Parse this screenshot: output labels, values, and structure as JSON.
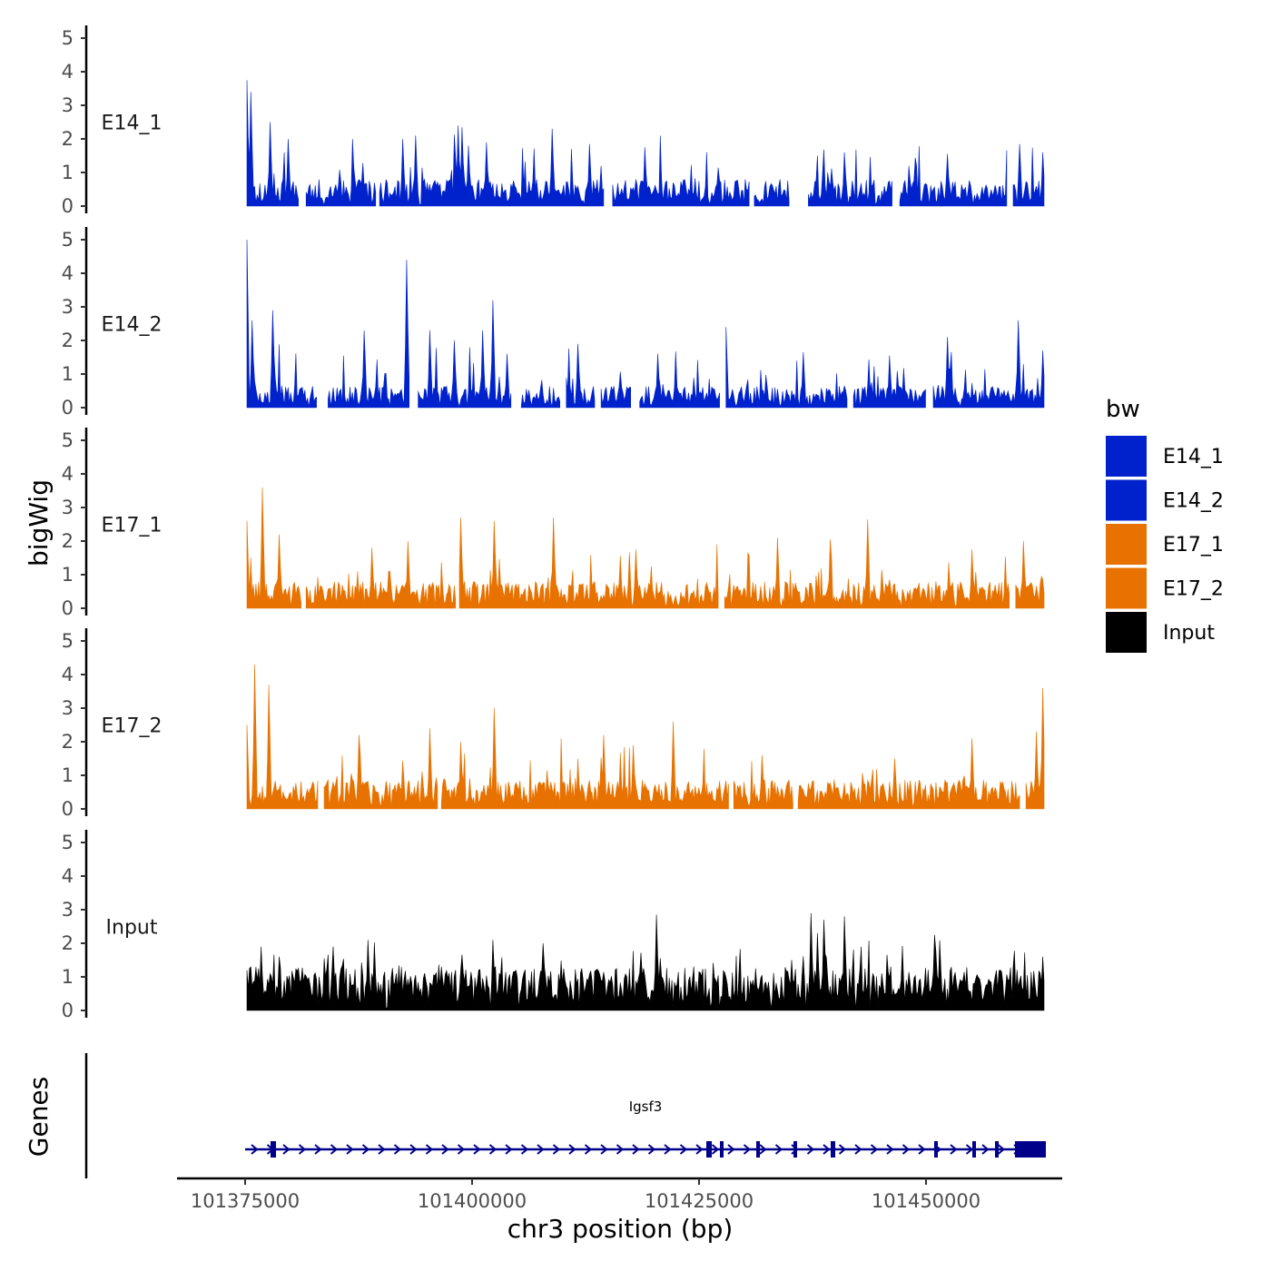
{
  "chart_data": {
    "type": "area",
    "chromosome": "chr3",
    "xlabel": "chr3 position (bp)",
    "ylabel": "bigWig",
    "genes_axis_label": "Genes",
    "xlim": [
      101367500,
      101465000
    ],
    "data_range": [
      101375200,
      101463000
    ],
    "x_ticks": [
      101375000,
      101400000,
      101425000,
      101450000
    ],
    "x_tick_labels": [
      "101375000",
      "101400000",
      "101425000",
      "101450000"
    ],
    "ylim": [
      0,
      5.4
    ],
    "y_ticks": [
      0,
      1,
      2,
      3,
      4,
      5
    ],
    "y_tick_labels": [
      "0",
      "1",
      "2",
      "3",
      "4",
      "5"
    ],
    "legend": {
      "title": "bw",
      "entries": [
        {
          "label": "E14_1",
          "color": "#0022cc"
        },
        {
          "label": "E14_2",
          "color": "#0022cc"
        },
        {
          "label": "E17_1",
          "color": "#e87200"
        },
        {
          "label": "E17_2",
          "color": "#e87200"
        },
        {
          "label": "Input",
          "color": "#000000"
        }
      ]
    },
    "series": [
      {
        "name": "E14_1",
        "color": "#0022cc",
        "seed": 11,
        "base": 0.55,
        "peak_prob": 0.09,
        "peak_scale": 1.4,
        "gaps": [
          [
            101381000,
            101381600
          ],
          [
            101389400,
            101389800
          ],
          [
            101414600,
            101415400
          ],
          [
            101430600,
            101431000
          ],
          [
            101435000,
            101437000
          ],
          [
            101446300,
            101447100
          ],
          [
            101459000,
            101459500
          ]
        ],
        "peaks": [
          [
            101375200,
            3.75
          ],
          [
            101375600,
            3.4
          ],
          [
            101377700,
            2.5
          ],
          [
            101379700,
            2.0
          ],
          [
            101392300,
            2.0
          ],
          [
            101393800,
            2.1
          ],
          [
            101398400,
            2.4
          ],
          [
            101398900,
            2.35
          ],
          [
            101399600,
            1.8
          ],
          [
            101401600,
            1.9
          ],
          [
            101408800,
            2.3
          ],
          [
            101413000,
            1.85
          ],
          [
            101419000,
            1.75
          ],
          [
            101441000,
            1.6
          ],
          [
            101452400,
            1.55
          ],
          [
            101460300,
            1.85
          ],
          [
            101462900,
            1.6
          ]
        ]
      },
      {
        "name": "E14_2",
        "color": "#0022cc",
        "seed": 23,
        "base": 0.45,
        "peak_prob": 0.09,
        "peak_scale": 1.3,
        "gaps": [
          [
            101383000,
            101384100
          ],
          [
            101393200,
            101394000
          ],
          [
            101404400,
            101405400
          ],
          [
            101409700,
            101410300
          ],
          [
            101413500,
            101414200
          ],
          [
            101417500,
            101418400
          ],
          [
            101427300,
            101427900
          ],
          [
            101441400,
            101442000
          ],
          [
            101450000,
            101450700
          ]
        ],
        "peaks": [
          [
            101375200,
            5.0
          ],
          [
            101375700,
            2.6
          ],
          [
            101378000,
            2.9
          ],
          [
            101388100,
            2.3
          ],
          [
            101392800,
            4.4
          ],
          [
            101393200,
            2.2
          ],
          [
            101395400,
            2.3
          ],
          [
            101398000,
            2.0
          ],
          [
            101401200,
            2.3
          ],
          [
            101402300,
            3.2
          ],
          [
            101403900,
            1.6
          ],
          [
            101411600,
            1.9
          ],
          [
            101420500,
            1.6
          ],
          [
            101428000,
            2.4
          ],
          [
            101436500,
            1.65
          ],
          [
            101446000,
            1.55
          ],
          [
            101452400,
            2.1
          ],
          [
            101460200,
            2.6
          ],
          [
            101462900,
            1.7
          ]
        ]
      },
      {
        "name": "E17_1",
        "color": "#e87200",
        "seed": 37,
        "base": 0.55,
        "peak_prob": 0.08,
        "peak_scale": 1.3,
        "gaps": [
          [
            101381200,
            101381700
          ],
          [
            101398200,
            101398600
          ],
          [
            101427200,
            101427700
          ],
          [
            101459300,
            101459800
          ]
        ],
        "peaks": [
          [
            101375200,
            2.6
          ],
          [
            101376900,
            3.6
          ],
          [
            101378700,
            2.2
          ],
          [
            101388900,
            1.8
          ],
          [
            101393000,
            2.0
          ],
          [
            101398800,
            2.7
          ],
          [
            101402400,
            2.6
          ],
          [
            101408900,
            2.7
          ],
          [
            101418000,
            1.75
          ],
          [
            101433700,
            2.1
          ],
          [
            101439400,
            2.05
          ],
          [
            101443500,
            2.65
          ],
          [
            101455000,
            1.75
          ],
          [
            101460800,
            2.0
          ],
          [
            101462900,
            0.85
          ]
        ]
      },
      {
        "name": "E17_2",
        "color": "#e87200",
        "seed": 53,
        "base": 0.6,
        "peak_prob": 0.08,
        "peak_scale": 1.3,
        "gaps": [
          [
            101383100,
            101383700
          ],
          [
            101396200,
            101396600
          ],
          [
            101428300,
            101428700
          ],
          [
            101435400,
            101435800
          ],
          [
            101460400,
            101461000
          ]
        ],
        "peaks": [
          [
            101375200,
            2.5
          ],
          [
            101376000,
            4.3
          ],
          [
            101377600,
            3.7
          ],
          [
            101387600,
            2.2
          ],
          [
            101395300,
            2.4
          ],
          [
            101398800,
            2.0
          ],
          [
            101402400,
            3.0
          ],
          [
            101414500,
            2.2
          ],
          [
            101417700,
            1.9
          ],
          [
            101422100,
            2.6
          ],
          [
            101432000,
            1.6
          ],
          [
            101455000,
            2.1
          ],
          [
            101462100,
            2.3
          ],
          [
            101462900,
            3.6
          ]
        ]
      },
      {
        "name": "Input",
        "color": "#000000",
        "seed": 71,
        "base": 0.9,
        "peak_prob": 0.08,
        "peak_scale": 1.0,
        "gaps": [],
        "peaks": [
          [
            101375200,
            1.2
          ],
          [
            101376800,
            1.9
          ],
          [
            101378800,
            1.6
          ],
          [
            101388500,
            2.1
          ],
          [
            101402300,
            2.1
          ],
          [
            101407800,
            2.0
          ],
          [
            101420300,
            2.85
          ],
          [
            101438000,
            2.3
          ],
          [
            101437300,
            2.9
          ],
          [
            101438700,
            2.7
          ],
          [
            101441000,
            2.8
          ],
          [
            101451000,
            2.25
          ],
          [
            101462800,
            1.6
          ]
        ]
      }
    ],
    "gene": {
      "name": "Igsf3",
      "strand": "+",
      "color": "#00008b",
      "start": 101375000,
      "end": 101463200,
      "exons": [
        [
          101377800,
          101378400
        ],
        [
          101425800,
          101426400
        ],
        [
          101427300,
          101427700
        ],
        [
          101431300,
          101431600
        ],
        [
          101435400,
          101435700
        ],
        [
          101439500,
          101440000
        ],
        [
          101450900,
          101451200
        ],
        [
          101455100,
          101455400
        ],
        [
          101457600,
          101457900
        ],
        [
          101459800,
          101463200
        ]
      ]
    }
  }
}
